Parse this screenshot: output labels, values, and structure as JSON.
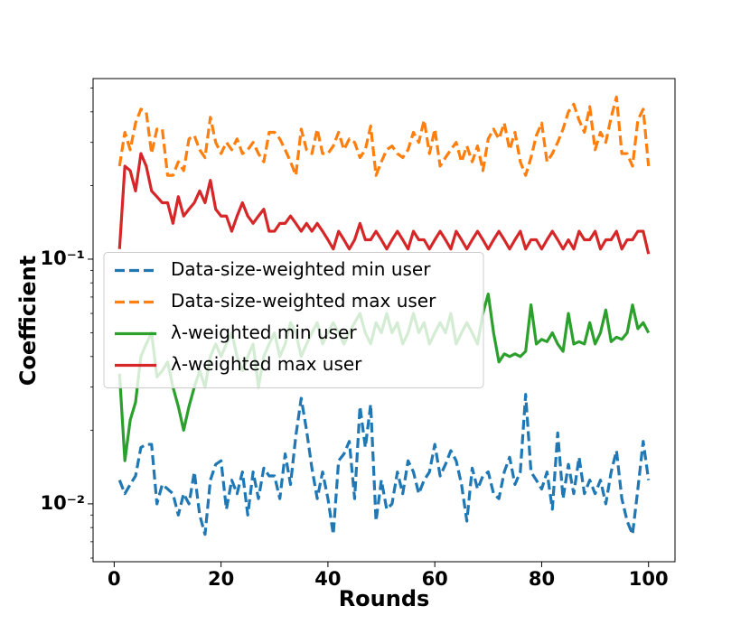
{
  "chart_data": {
    "type": "line",
    "xlabel": "Rounds",
    "ylabel": "Coefficient",
    "log_y": true,
    "legend": "center left",
    "xlim": [
      -3.95,
      104.95
    ],
    "ylim": [
      0.0058,
      0.547
    ],
    "xticks": [
      0,
      20,
      40,
      60,
      80,
      100
    ],
    "yticks": [
      {
        "value": 0.01,
        "label": "10⁻²"
      },
      {
        "value": 0.1,
        "label": "10⁻¹"
      }
    ],
    "yminorticks": [
      0.006,
      0.007,
      0.008,
      0.009,
      0.02,
      0.03,
      0.04,
      0.05,
      0.06,
      0.07,
      0.08,
      0.09,
      0.2,
      0.3,
      0.4,
      0.5
    ],
    "x": [
      1,
      2,
      3,
      4,
      5,
      6,
      7,
      8,
      9,
      10,
      11,
      12,
      13,
      14,
      15,
      16,
      17,
      18,
      19,
      20,
      21,
      22,
      23,
      24,
      25,
      26,
      27,
      28,
      29,
      30,
      31,
      32,
      33,
      34,
      35,
      36,
      37,
      38,
      39,
      40,
      41,
      42,
      43,
      44,
      45,
      46,
      47,
      48,
      49,
      50,
      51,
      52,
      53,
      54,
      55,
      56,
      57,
      58,
      59,
      60,
      61,
      62,
      63,
      64,
      65,
      66,
      67,
      68,
      69,
      70,
      71,
      72,
      73,
      74,
      75,
      76,
      77,
      78,
      79,
      80,
      81,
      82,
      83,
      84,
      85,
      86,
      87,
      88,
      89,
      90,
      91,
      92,
      93,
      94,
      95,
      96,
      97,
      98,
      99,
      100
    ],
    "series": [
      {
        "name": "Data-size-weighted min user",
        "color": "#1f77b4",
        "linestyle": "dashed",
        "values": [
          0.0125,
          0.011,
          0.012,
          0.013,
          0.017,
          0.0175,
          0.0175,
          0.01,
          0.012,
          0.0115,
          0.011,
          0.009,
          0.011,
          0.01,
          0.0135,
          0.009,
          0.0075,
          0.0125,
          0.0145,
          0.015,
          0.0095,
          0.0125,
          0.011,
          0.0135,
          0.009,
          0.0135,
          0.0105,
          0.014,
          0.013,
          0.013,
          0.0105,
          0.016,
          0.012,
          0.019,
          0.027,
          0.02,
          0.014,
          0.0105,
          0.0135,
          0.0105,
          0.0075,
          0.015,
          0.016,
          0.018,
          0.0105,
          0.025,
          0.017,
          0.0255,
          0.0085,
          0.0125,
          0.0095,
          0.01,
          0.0135,
          0.011,
          0.015,
          0.0135,
          0.011,
          0.0125,
          0.0135,
          0.0175,
          0.013,
          0.0145,
          0.0165,
          0.015,
          0.012,
          0.0085,
          0.014,
          0.0115,
          0.013,
          0.0135,
          0.011,
          0.0105,
          0.0135,
          0.0155,
          0.012,
          0.0135,
          0.028,
          0.0135,
          0.0125,
          0.0115,
          0.0135,
          0.0095,
          0.0195,
          0.0105,
          0.0145,
          0.011,
          0.0155,
          0.011,
          0.0125,
          0.011,
          0.0125,
          0.01,
          0.0135,
          0.0165,
          0.0105,
          0.0085,
          0.0075,
          0.0115,
          0.018,
          0.0125
        ]
      },
      {
        "name": "Data-size-weighted max user",
        "color": "#ff7f0e",
        "linestyle": "dashed",
        "values": [
          0.24,
          0.33,
          0.28,
          0.36,
          0.41,
          0.4,
          0.27,
          0.34,
          0.34,
          0.22,
          0.22,
          0.25,
          0.23,
          0.31,
          0.32,
          0.28,
          0.26,
          0.38,
          0.3,
          0.27,
          0.3,
          0.28,
          0.31,
          0.27,
          0.28,
          0.3,
          0.27,
          0.25,
          0.33,
          0.33,
          0.31,
          0.28,
          0.25,
          0.22,
          0.34,
          0.28,
          0.27,
          0.34,
          0.27,
          0.27,
          0.29,
          0.33,
          0.28,
          0.31,
          0.3,
          0.26,
          0.28,
          0.35,
          0.22,
          0.25,
          0.28,
          0.29,
          0.27,
          0.26,
          0.28,
          0.33,
          0.3,
          0.37,
          0.27,
          0.34,
          0.24,
          0.26,
          0.28,
          0.3,
          0.25,
          0.29,
          0.25,
          0.29,
          0.23,
          0.31,
          0.34,
          0.31,
          0.36,
          0.28,
          0.33,
          0.25,
          0.22,
          0.26,
          0.32,
          0.36,
          0.25,
          0.27,
          0.3,
          0.34,
          0.4,
          0.43,
          0.37,
          0.33,
          0.42,
          0.28,
          0.33,
          0.3,
          0.38,
          0.46,
          0.27,
          0.27,
          0.24,
          0.37,
          0.41,
          0.24
        ]
      },
      {
        "name": "λ-weighted min user",
        "color": "#2ca02c",
        "linestyle": "solid",
        "values": [
          0.034,
          0.015,
          0.022,
          0.026,
          0.04,
          0.045,
          0.05,
          0.033,
          0.035,
          0.038,
          0.03,
          0.025,
          0.02,
          0.025,
          0.03,
          0.035,
          0.03,
          0.04,
          0.045,
          0.04,
          0.045,
          0.05,
          0.04,
          0.035,
          0.04,
          0.045,
          0.03,
          0.04,
          0.045,
          0.05,
          0.04,
          0.045,
          0.055,
          0.05,
          0.04,
          0.045,
          0.05,
          0.055,
          0.045,
          0.05,
          0.055,
          0.05,
          0.045,
          0.05,
          0.055,
          0.06,
          0.05,
          0.045,
          0.055,
          0.05,
          0.06,
          0.05,
          0.055,
          0.045,
          0.05,
          0.06,
          0.05,
          0.055,
          0.045,
          0.05,
          0.055,
          0.05,
          0.06,
          0.045,
          0.05,
          0.055,
          0.05,
          0.045,
          0.06,
          0.072,
          0.05,
          0.038,
          0.041,
          0.04,
          0.041,
          0.04,
          0.042,
          0.065,
          0.045,
          0.047,
          0.046,
          0.05,
          0.045,
          0.042,
          0.06,
          0.045,
          0.046,
          0.045,
          0.055,
          0.045,
          0.05,
          0.062,
          0.046,
          0.048,
          0.047,
          0.05,
          0.065,
          0.052,
          0.055,
          0.05
        ]
      },
      {
        "name": "λ-weighted max user",
        "color": "#d62728",
        "linestyle": "solid",
        "values": [
          0.11,
          0.24,
          0.23,
          0.19,
          0.27,
          0.24,
          0.19,
          0.18,
          0.17,
          0.17,
          0.14,
          0.18,
          0.15,
          0.16,
          0.17,
          0.19,
          0.17,
          0.21,
          0.16,
          0.15,
          0.15,
          0.13,
          0.15,
          0.17,
          0.15,
          0.14,
          0.15,
          0.16,
          0.13,
          0.13,
          0.14,
          0.14,
          0.15,
          0.14,
          0.13,
          0.14,
          0.13,
          0.14,
          0.13,
          0.12,
          0.11,
          0.13,
          0.12,
          0.11,
          0.12,
          0.14,
          0.12,
          0.12,
          0.13,
          0.12,
          0.11,
          0.12,
          0.13,
          0.12,
          0.11,
          0.13,
          0.12,
          0.12,
          0.11,
          0.12,
          0.13,
          0.12,
          0.11,
          0.13,
          0.12,
          0.11,
          0.12,
          0.13,
          0.12,
          0.11,
          0.12,
          0.13,
          0.12,
          0.11,
          0.12,
          0.13,
          0.11,
          0.12,
          0.12,
          0.11,
          0.12,
          0.13,
          0.12,
          0.11,
          0.12,
          0.11,
          0.13,
          0.12,
          0.12,
          0.13,
          0.11,
          0.12,
          0.12,
          0.13,
          0.11,
          0.12,
          0.12,
          0.13,
          0.13,
          0.105
        ]
      }
    ]
  }
}
